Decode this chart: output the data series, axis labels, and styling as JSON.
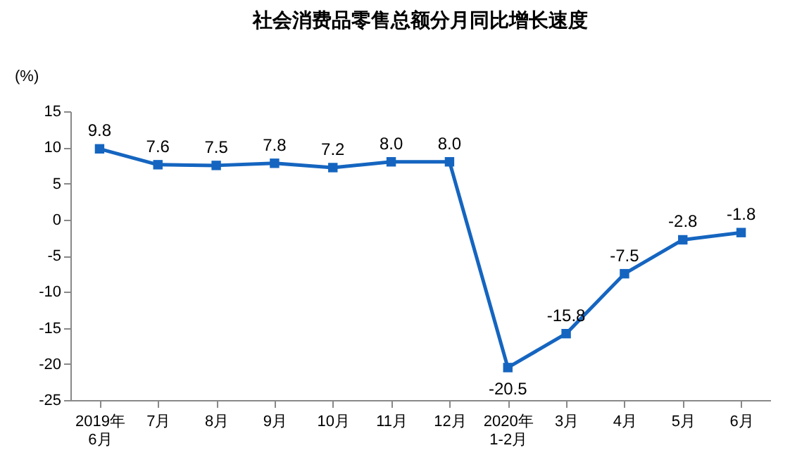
{
  "chart_data": {
    "type": "line",
    "title": "社会消费品零售总额分月同比增长速度",
    "ylabel": "(%)",
    "categories": [
      "2019年\n6月",
      "7月",
      "8月",
      "9月",
      "10月",
      "11月",
      "12月",
      "2020年\n1-2月",
      "3月",
      "4月",
      "5月",
      "6月"
    ],
    "series": [
      {
        "color": "#1565c0",
        "values": [
          9.8,
          7.6,
          7.5,
          7.8,
          7.2,
          8.0,
          8.0,
          -20.5,
          -15.8,
          -7.5,
          -2.8,
          -1.8
        ],
        "value_labels": [
          "9.8",
          "7.6",
          "7.5",
          "7.8",
          "7.2",
          "8.0",
          "8.0",
          "-20.5",
          "-15.8",
          "-7.5",
          "-2.8",
          "-1.8"
        ]
      }
    ],
    "ylim": [
      -25,
      15
    ],
    "yticks": [
      -25,
      -20,
      -15,
      -10,
      -5,
      0,
      5,
      10,
      15
    ],
    "grid": false,
    "marker": "square",
    "line_style": "solid"
  }
}
